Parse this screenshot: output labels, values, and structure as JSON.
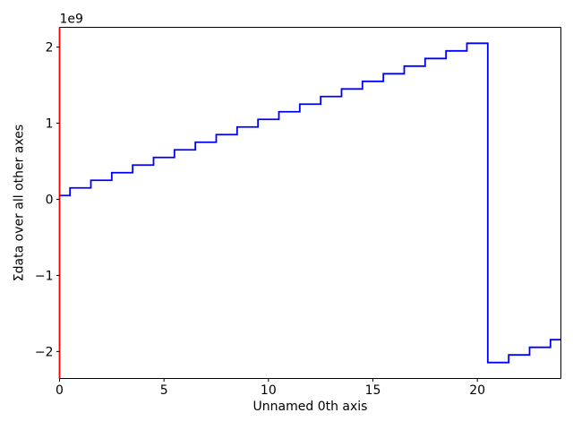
{
  "figure": {
    "background": "#ffffff"
  },
  "chart_data": {
    "type": "line",
    "drawstyle": "steps-mid",
    "title": "",
    "xlabel": "Unnamed 0th axis",
    "ylabel": "Σdata over all other axes",
    "offset_label": "1e9",
    "grid": false,
    "legend": false,
    "line_color": "#0000ff",
    "line_width": 1.8,
    "spine_colors": {
      "left": "#ff0000",
      "right": "#000000",
      "top": "#000000",
      "bottom": "#000000"
    },
    "spine_widths": {
      "left": 1.8,
      "right": 1.0,
      "top": 1.0,
      "bottom": 1.0
    },
    "tick_color": "#000000",
    "xlim": [
      0,
      24
    ],
    "ylim": [
      -2354715661,
      2259748365
    ],
    "xticks": {
      "values": [
        0,
        5,
        10,
        15,
        20
      ],
      "labels": [
        "0",
        "5",
        "10",
        "15",
        "20"
      ]
    },
    "yticks": {
      "values": [
        2000000000,
        1000000000,
        0,
        -1000000000,
        -2000000000
      ],
      "labels": [
        "2",
        "1",
        "0",
        "−1",
        "−2"
      ]
    },
    "x": [
      0,
      1,
      2,
      3,
      4,
      5,
      6,
      7,
      8,
      9,
      10,
      11,
      12,
      13,
      14,
      15,
      16,
      17,
      18,
      19,
      20,
      21,
      22,
      23,
      24
    ],
    "y": [
      50000000,
      150000000,
      250000000,
      350000000,
      450000000,
      550000000,
      650000000,
      750000000,
      850000000,
      950000000,
      1050000000,
      1150000000,
      1250000000,
      1350000000,
      1450000000,
      1550000000,
      1650000000,
      1750000000,
      1850000000,
      1950000000,
      2050000000,
      -2144967296,
      -2044967296,
      -1944967296,
      -1844967296
    ]
  }
}
